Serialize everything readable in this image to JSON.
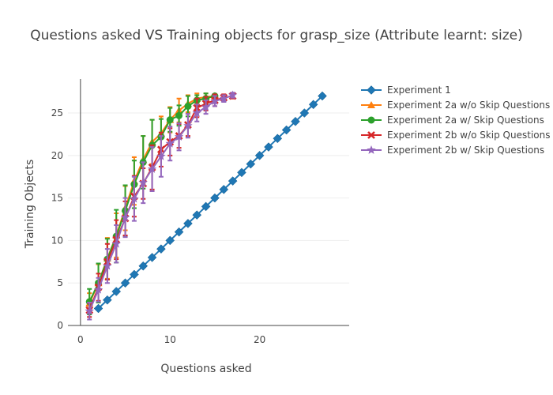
{
  "chart_data": {
    "type": "line",
    "title": "Questions asked VS Training objects for grasp_size (Attribute learnt: size)",
    "xlabel": "Questions asked",
    "ylabel": "Training Objects",
    "xlim": [
      -1.4,
      30
    ],
    "ylim": [
      0,
      29
    ],
    "xticks": [
      0,
      10,
      20
    ],
    "yticks": [
      0,
      5,
      10,
      15,
      20,
      25
    ],
    "grid": "horizontal",
    "legend_position": "top-right",
    "series": [
      {
        "name": "Experiment 1",
        "color": "#1f77b4",
        "marker": "diamond",
        "x": [
          2,
          3,
          4,
          5,
          6,
          7,
          8,
          9,
          10,
          11,
          12,
          13,
          14,
          15,
          16,
          17,
          18,
          19,
          20,
          21,
          22,
          23,
          24,
          25,
          26,
          27
        ],
        "y": [
          2,
          3,
          4,
          5,
          6,
          7,
          8,
          9,
          10,
          11,
          12,
          13,
          14,
          15,
          16,
          17,
          18,
          19,
          20,
          21,
          22,
          23,
          24,
          25,
          26,
          27
        ]
      },
      {
        "name": "Experiment 2a w/o Skip Questions",
        "color": "#ff7f0e",
        "marker": "triangle-up",
        "x": [
          1,
          2,
          3,
          4,
          5,
          6,
          7,
          8,
          9,
          10,
          11,
          12,
          13,
          14,
          15
        ],
        "y": [
          2.6,
          5.0,
          7.9,
          10.6,
          13.8,
          17.0,
          19.5,
          21.6,
          22.6,
          24.2,
          25.3,
          26.1,
          26.7,
          26.9,
          27.0
        ],
        "err": [
          1.2,
          2.2,
          2.4,
          2.6,
          2.6,
          2.8,
          2.8,
          2.6,
          2.0,
          1.5,
          1.4,
          1.0,
          0.6,
          0.4,
          0.2
        ]
      },
      {
        "name": "Experiment 2a w/ Skip Questions",
        "color": "#2ca02c",
        "marker": "circle",
        "x": [
          1,
          2,
          3,
          4,
          5,
          6,
          7,
          8,
          9,
          10,
          11,
          12,
          13,
          14,
          15
        ],
        "y": [
          2.8,
          5.0,
          7.8,
          10.5,
          13.5,
          16.6,
          19.2,
          21.2,
          22.2,
          24.2,
          24.7,
          25.8,
          26.5,
          26.7,
          27.0
        ],
        "err": [
          1.5,
          2.3,
          2.4,
          3.1,
          3.0,
          2.8,
          3.1,
          3.0,
          2.1,
          1.4,
          1.2,
          1.2,
          0.6,
          0.6,
          0.2
        ]
      },
      {
        "name": "Experiment 2b w/o Skip Questions",
        "color": "#d62728",
        "marker": "x",
        "x": [
          1,
          2,
          3,
          4,
          5,
          6,
          7,
          8,
          9,
          10,
          11,
          12,
          13,
          14,
          15,
          16,
          17
        ],
        "y": [
          1.8,
          4.5,
          7.5,
          10.1,
          12.6,
          15.2,
          16.7,
          18.6,
          20.7,
          21.6,
          22.3,
          23.6,
          25.6,
          26.1,
          26.5,
          26.8,
          27.0
        ],
        "err": [
          0.8,
          1.6,
          2.1,
          2.3,
          2.0,
          2.4,
          1.8,
          2.6,
          2.0,
          1.6,
          1.4,
          1.3,
          1.1,
          0.8,
          0.7,
          0.4,
          0.3
        ]
      },
      {
        "name": "Experiment 2b w/ Skip Questions",
        "color": "#9467bd",
        "marker": "star",
        "x": [
          1,
          2,
          3,
          4,
          5,
          6,
          7,
          8,
          9,
          10,
          11,
          12,
          13,
          14,
          15,
          16,
          17
        ],
        "y": [
          1.7,
          4.2,
          7.0,
          9.6,
          12.7,
          14.9,
          16.8,
          18.4,
          19.9,
          21.4,
          22.2,
          23.5,
          25.0,
          25.7,
          26.4,
          26.7,
          27.1
        ],
        "err": [
          1.0,
          1.4,
          2.0,
          2.2,
          2.3,
          2.6,
          2.4,
          2.6,
          2.4,
          2.0,
          1.6,
          1.4,
          1.0,
          0.8,
          0.6,
          0.4,
          0.3
        ]
      }
    ]
  }
}
